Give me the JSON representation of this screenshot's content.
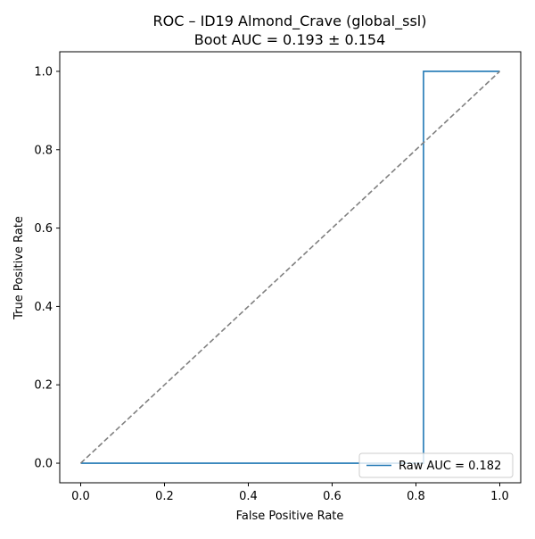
{
  "chart_data": {
    "type": "line",
    "title": "ROC – ID19 Almond_Crave (global_ssl)",
    "subtitle": "Boot AUC = 0.193 ± 0.154",
    "xlabel": "False Positive Rate",
    "ylabel": "True Positive Rate",
    "xlim": [
      -0.05,
      1.05
    ],
    "ylim": [
      -0.05,
      1.05
    ],
    "xticks": [
      0.0,
      0.2,
      0.4,
      0.6,
      0.8,
      1.0
    ],
    "yticks": [
      0.0,
      0.2,
      0.4,
      0.6,
      0.8,
      1.0
    ],
    "xtick_labels": [
      "0.0",
      "0.2",
      "0.4",
      "0.6",
      "0.8",
      "1.0"
    ],
    "ytick_labels": [
      "0.0",
      "0.2",
      "0.4",
      "0.6",
      "0.8",
      "1.0"
    ],
    "grid": false,
    "legend": {
      "location": "lower right",
      "entries": [
        "Raw AUC = 0.182"
      ]
    },
    "series": [
      {
        "name": "Raw AUC = 0.182",
        "color": "#1f77b4",
        "style": "solid",
        "x": [
          0.0,
          0.818,
          0.818,
          1.0
        ],
        "y": [
          0.0,
          0.0,
          1.0,
          1.0
        ]
      },
      {
        "color": "#808080",
        "style": "dashed",
        "x": [
          0.0,
          1.0
        ],
        "y": [
          0.0,
          1.0
        ]
      }
    ]
  }
}
